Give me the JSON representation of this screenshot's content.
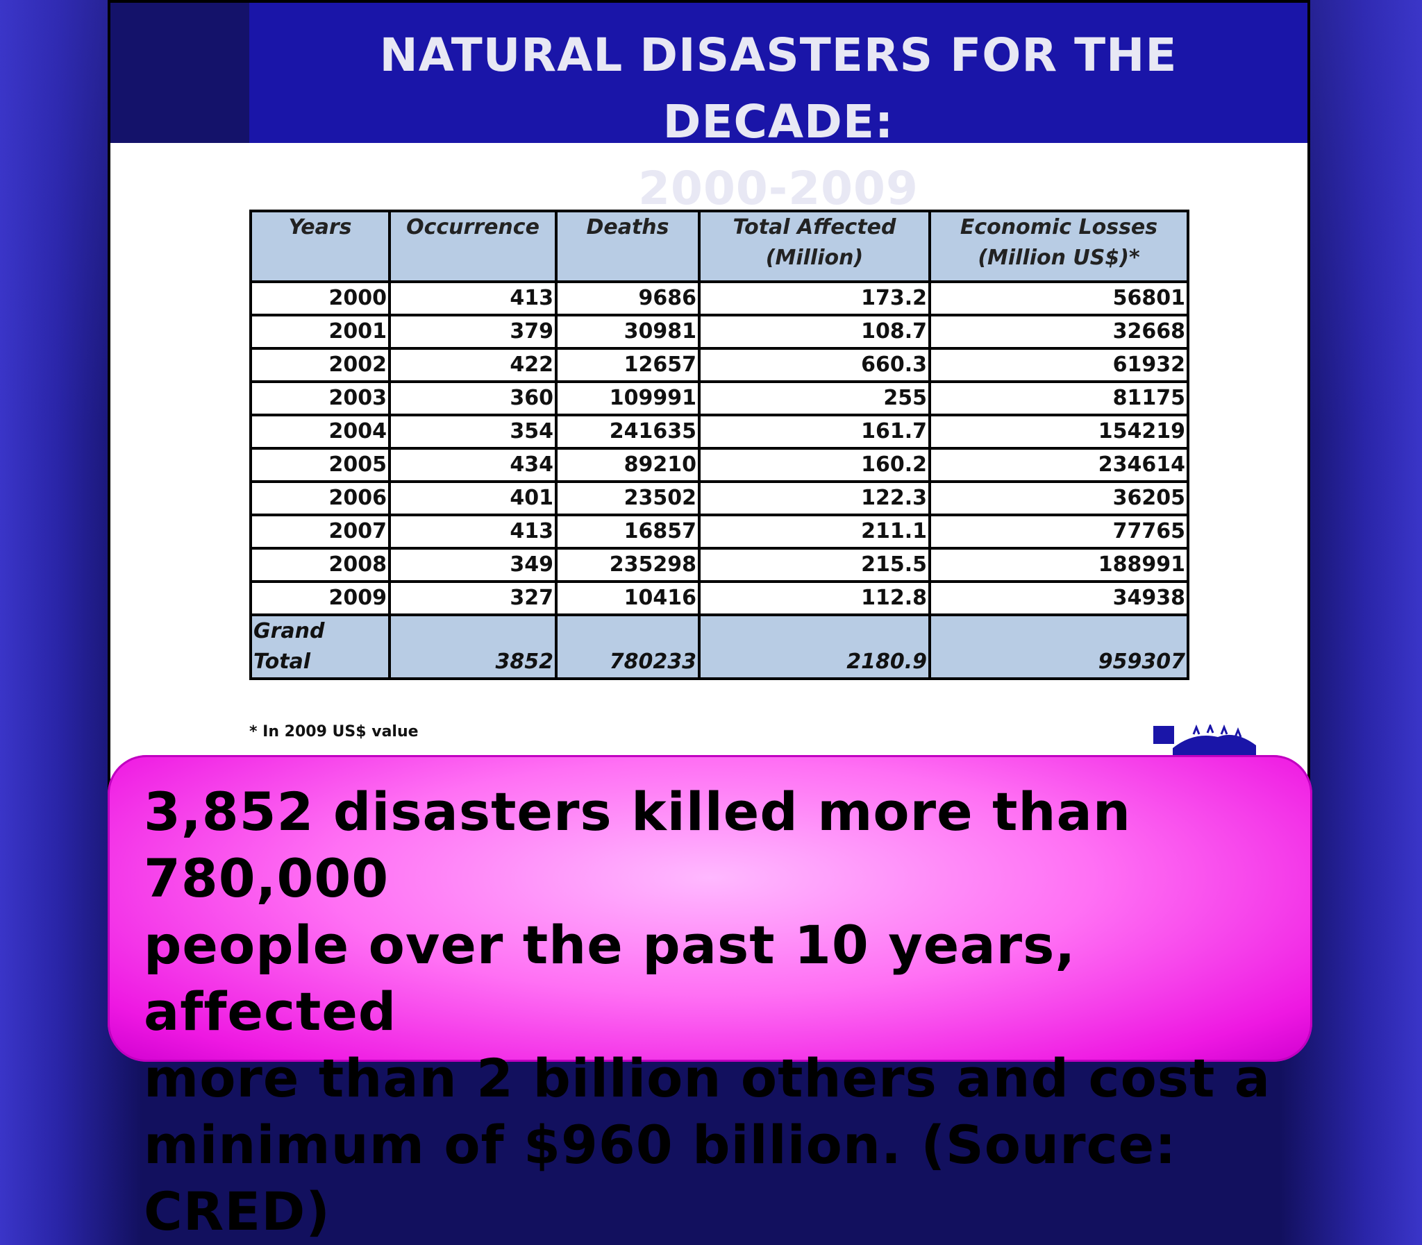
{
  "slide": {
    "title_line1": "NATURAL DISASTERS FOR THE DECADE:",
    "title_line2": "2000-2009"
  },
  "table": {
    "headers": {
      "years": "Years",
      "occurrence": "Occurrence",
      "deaths": "Deaths",
      "affected_1": "Total Affected",
      "affected_2": "(Million)",
      "losses_1": "Economic Losses",
      "losses_2": "(Million US$)*"
    },
    "rows": [
      {
        "year": "2000",
        "occurrence": "413",
        "deaths": "9686",
        "affected": "173.2",
        "losses": "56801"
      },
      {
        "year": "2001",
        "occurrence": "379",
        "deaths": "30981",
        "affected": "108.7",
        "losses": "32668"
      },
      {
        "year": "2002",
        "occurrence": "422",
        "deaths": "12657",
        "affected": "660.3",
        "losses": "61932"
      },
      {
        "year": "2003",
        "occurrence": "360",
        "deaths": "109991",
        "affected": "255",
        "losses": "81175"
      },
      {
        "year": "2004",
        "occurrence": "354",
        "deaths": "241635",
        "affected": "161.7",
        "losses": "154219"
      },
      {
        "year": "2005",
        "occurrence": "434",
        "deaths": "89210",
        "affected": "160.2",
        "losses": "234614"
      },
      {
        "year": "2006",
        "occurrence": "401",
        "deaths": "23502",
        "affected": "122.3",
        "losses": "36205"
      },
      {
        "year": "2007",
        "occurrence": "413",
        "deaths": "16857",
        "affected": "211.1",
        "losses": "77765"
      },
      {
        "year": "2008",
        "occurrence": "349",
        "deaths": "235298",
        "affected": "215.5",
        "losses": "188991"
      },
      {
        "year": "2009",
        "occurrence": "327",
        "deaths": "10416",
        "affected": "112.8",
        "losses": "34938"
      }
    ],
    "total": {
      "label": "Grand Total",
      "occurrence": "3852",
      "deaths": "780233",
      "affected": "2180.9",
      "losses": "959307"
    }
  },
  "footnote": "* In 2009 US$ value",
  "callout": {
    "line1": "3,852 disasters killed more than 780,000",
    "line2": "people over the past 10 years, affected",
    "line3": "more than 2 billion others and cost a",
    "line4": "minimum of $960 billion. (Source: CRED)"
  },
  "colors": {
    "header_blue": "#1a15a8",
    "table_header": "#b8cce4",
    "callout_magenta": "#ee18e2"
  },
  "icons": [
    "cred-logo-icon"
  ]
}
